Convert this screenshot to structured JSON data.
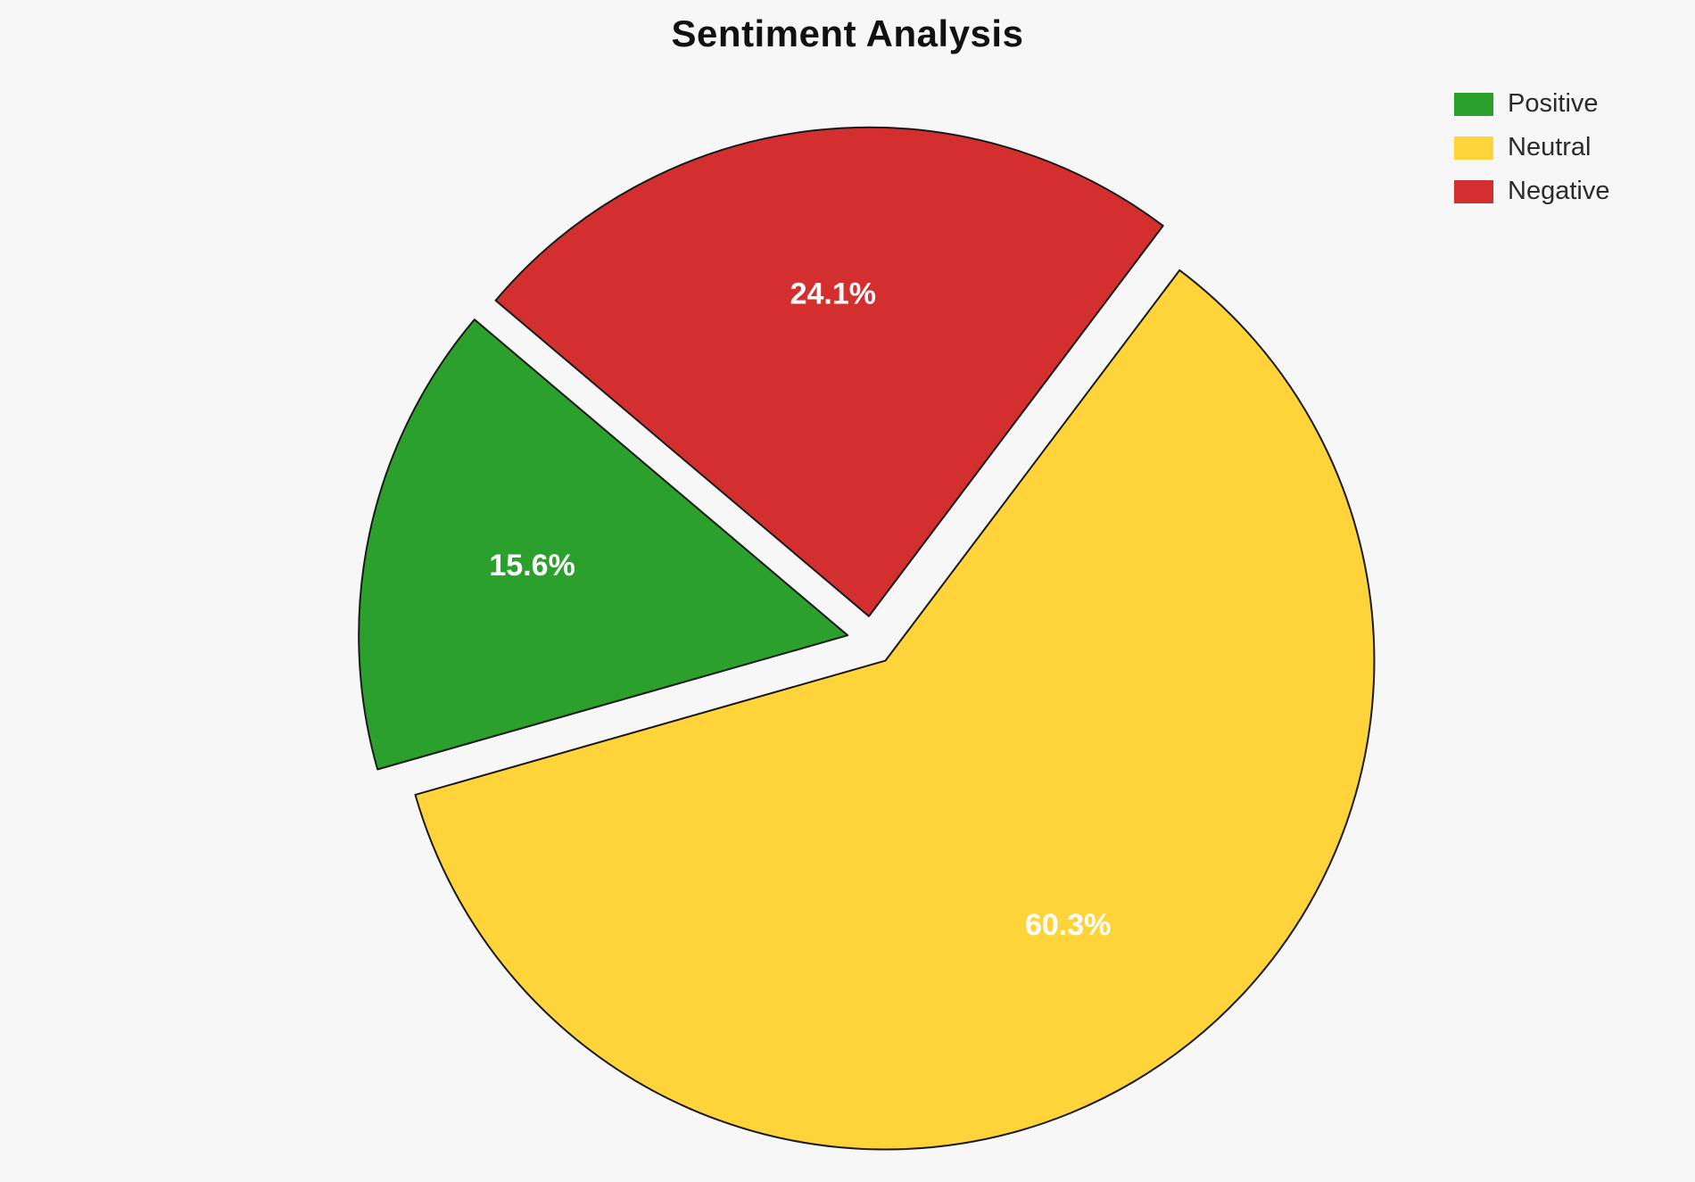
{
  "chart_data": {
    "type": "pie",
    "title": "Sentiment Analysis",
    "categories": [
      "Positive",
      "Neutral",
      "Negative"
    ],
    "values": [
      15.6,
      60.3,
      24.1
    ],
    "slices": [
      {
        "label": "Neutral",
        "value": 60.3,
        "percent_label": "60.3%",
        "color": "#ffd43b"
      },
      {
        "label": "Positive",
        "value": 15.6,
        "percent_label": "15.6%",
        "color": "#2ca02c"
      },
      {
        "label": "Negative",
        "value": 24.1,
        "percent_label": "24.1%",
        "color": "#d32f2f"
      }
    ],
    "legend": [
      {
        "label": "Positive",
        "color": "#2ca02c"
      },
      {
        "label": "Neutral",
        "color": "#ffd43b"
      },
      {
        "label": "Negative",
        "color": "#d32f2f"
      }
    ],
    "legend_position": "upper right",
    "start_angle_deg": 53,
    "direction": "clockwise",
    "explode": 0.05,
    "label_radius": 0.66,
    "label_color": "#ffffff",
    "slice_border_color": "#1a1a1a",
    "background": "#f7f7f7",
    "grid": false
  }
}
